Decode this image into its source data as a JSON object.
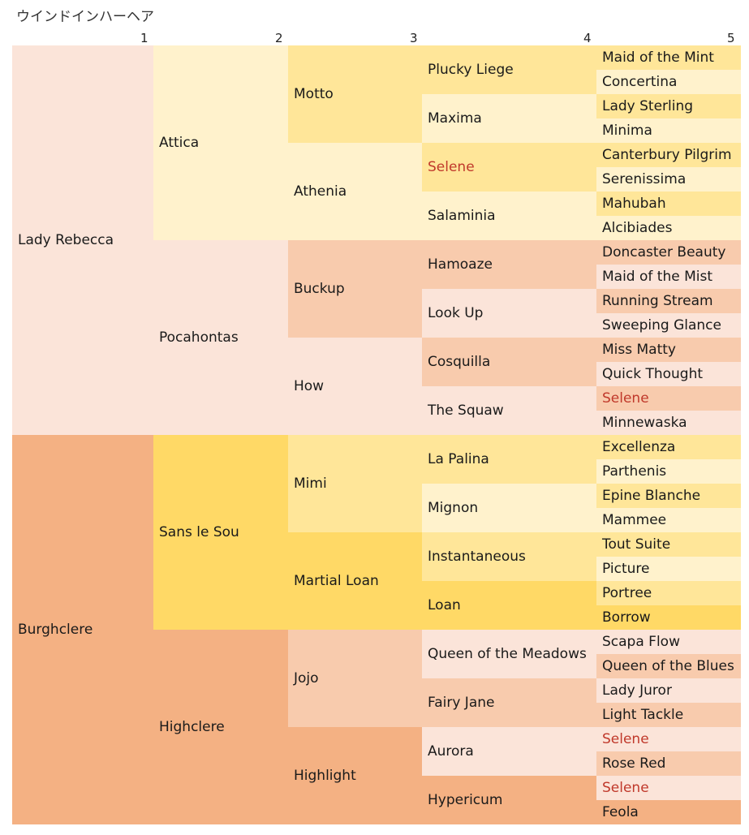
{
  "title": "ウインドインハーヘア",
  "generation_labels": [
    "1",
    "2",
    "3",
    "4",
    "5"
  ],
  "colors": {
    "lady_rebecca_line": "#fbe4d9",
    "burghclere": "#f4b183",
    "sans_le_sou": "#ffd966",
    "highclere": "#f4b183",
    "light_yellow": "#fff2cc",
    "mid_yellow": "#ffe699",
    "dark_yellow": "#ffd966",
    "light_orange": "#fbe4d9",
    "mid_orange": "#f8cbad",
    "dark_orange": "#f4b183",
    "duplicate_text": "#c0392b"
  },
  "pedigree": {
    "gen1": [
      {
        "name": "Lady Rebecca",
        "color": "#fbe4d9"
      },
      {
        "name": "Burghclere",
        "color": "#f4b183"
      }
    ],
    "gen2": [
      {
        "name": "Attica",
        "color": "#fff2cc"
      },
      {
        "name": "Pocahontas",
        "color": "#fbe4d9"
      },
      {
        "name": "Sans le Sou",
        "color": "#ffd966"
      },
      {
        "name": "Highclere",
        "color": "#f4b183"
      }
    ],
    "gen3": [
      {
        "name": "Motto",
        "color": "#ffe699"
      },
      {
        "name": "Athenia",
        "color": "#fff2cc"
      },
      {
        "name": "Buckup",
        "color": "#f8cbad"
      },
      {
        "name": "How",
        "color": "#fbe4d9"
      },
      {
        "name": "Mimi",
        "color": "#ffe699"
      },
      {
        "name": "Martial Loan",
        "color": "#ffd966"
      },
      {
        "name": "Jojo",
        "color": "#f8cbad"
      },
      {
        "name": "Highlight",
        "color": "#f4b183"
      }
    ],
    "gen4": [
      {
        "name": "Plucky Liege",
        "color": "#ffe699"
      },
      {
        "name": "Maxima",
        "color": "#fff2cc"
      },
      {
        "name": "Selene",
        "color": "#ffe699",
        "duplicate": true
      },
      {
        "name": "Salaminia",
        "color": "#fff2cc"
      },
      {
        "name": "Hamoaze",
        "color": "#f8cbad"
      },
      {
        "name": "Look Up",
        "color": "#fbe4d9"
      },
      {
        "name": "Cosquilla",
        "color": "#f8cbad"
      },
      {
        "name": "The Squaw",
        "color": "#fbe4d9"
      },
      {
        "name": "La Palina",
        "color": "#ffe699"
      },
      {
        "name": "Mignon",
        "color": "#fff2cc"
      },
      {
        "name": "Instantaneous",
        "color": "#ffe699"
      },
      {
        "name": "Loan",
        "color": "#ffd966"
      },
      {
        "name": "Queen of the Meadows",
        "color": "#fbe4d9"
      },
      {
        "name": "Fairy Jane",
        "color": "#f8cbad"
      },
      {
        "name": "Aurora",
        "color": "#fbe4d9"
      },
      {
        "name": "Hypericum",
        "color": "#f4b183"
      }
    ],
    "gen5": [
      {
        "name": "Maid of the Mint",
        "color": "#ffe699"
      },
      {
        "name": "Concertina",
        "color": "#fff2cc"
      },
      {
        "name": "Lady Sterling",
        "color": "#ffe699"
      },
      {
        "name": "Minima",
        "color": "#fff2cc"
      },
      {
        "name": "Canterbury Pilgrim",
        "color": "#ffe699"
      },
      {
        "name": "Serenissima",
        "color": "#fff2cc"
      },
      {
        "name": "Mahubah",
        "color": "#ffe699"
      },
      {
        "name": "Alcibiades",
        "color": "#fff2cc"
      },
      {
        "name": "Doncaster Beauty",
        "color": "#f8cbad"
      },
      {
        "name": "Maid of the Mist",
        "color": "#fbe4d9"
      },
      {
        "name": "Running Stream",
        "color": "#f8cbad"
      },
      {
        "name": "Sweeping Glance",
        "color": "#fbe4d9"
      },
      {
        "name": "Miss Matty",
        "color": "#f8cbad"
      },
      {
        "name": "Quick Thought",
        "color": "#fbe4d9"
      },
      {
        "name": "Selene",
        "color": "#f8cbad",
        "duplicate": true
      },
      {
        "name": "Minnewaska",
        "color": "#fbe4d9"
      },
      {
        "name": "Excellenza",
        "color": "#ffe699"
      },
      {
        "name": "Parthenis",
        "color": "#fff2cc"
      },
      {
        "name": "Epine Blanche",
        "color": "#ffe699"
      },
      {
        "name": "Mammee",
        "color": "#fff2cc"
      },
      {
        "name": "Tout Suite",
        "color": "#ffe699"
      },
      {
        "name": "Picture",
        "color": "#fff2cc"
      },
      {
        "name": "Portree",
        "color": "#ffe699"
      },
      {
        "name": "Borrow",
        "color": "#ffd966"
      },
      {
        "name": "Scapa Flow",
        "color": "#fbe4d9"
      },
      {
        "name": "Queen of the Blues",
        "color": "#f8cbad"
      },
      {
        "name": "Lady Juror",
        "color": "#fbe4d9"
      },
      {
        "name": "Light Tackle",
        "color": "#f8cbad"
      },
      {
        "name": "Selene",
        "color": "#fbe4d9",
        "duplicate": true
      },
      {
        "name": "Rose Red",
        "color": "#f8cbad"
      },
      {
        "name": "Selene",
        "color": "#fbe4d9",
        "duplicate": true
      },
      {
        "name": "Feola",
        "color": "#f4b183"
      }
    ]
  }
}
